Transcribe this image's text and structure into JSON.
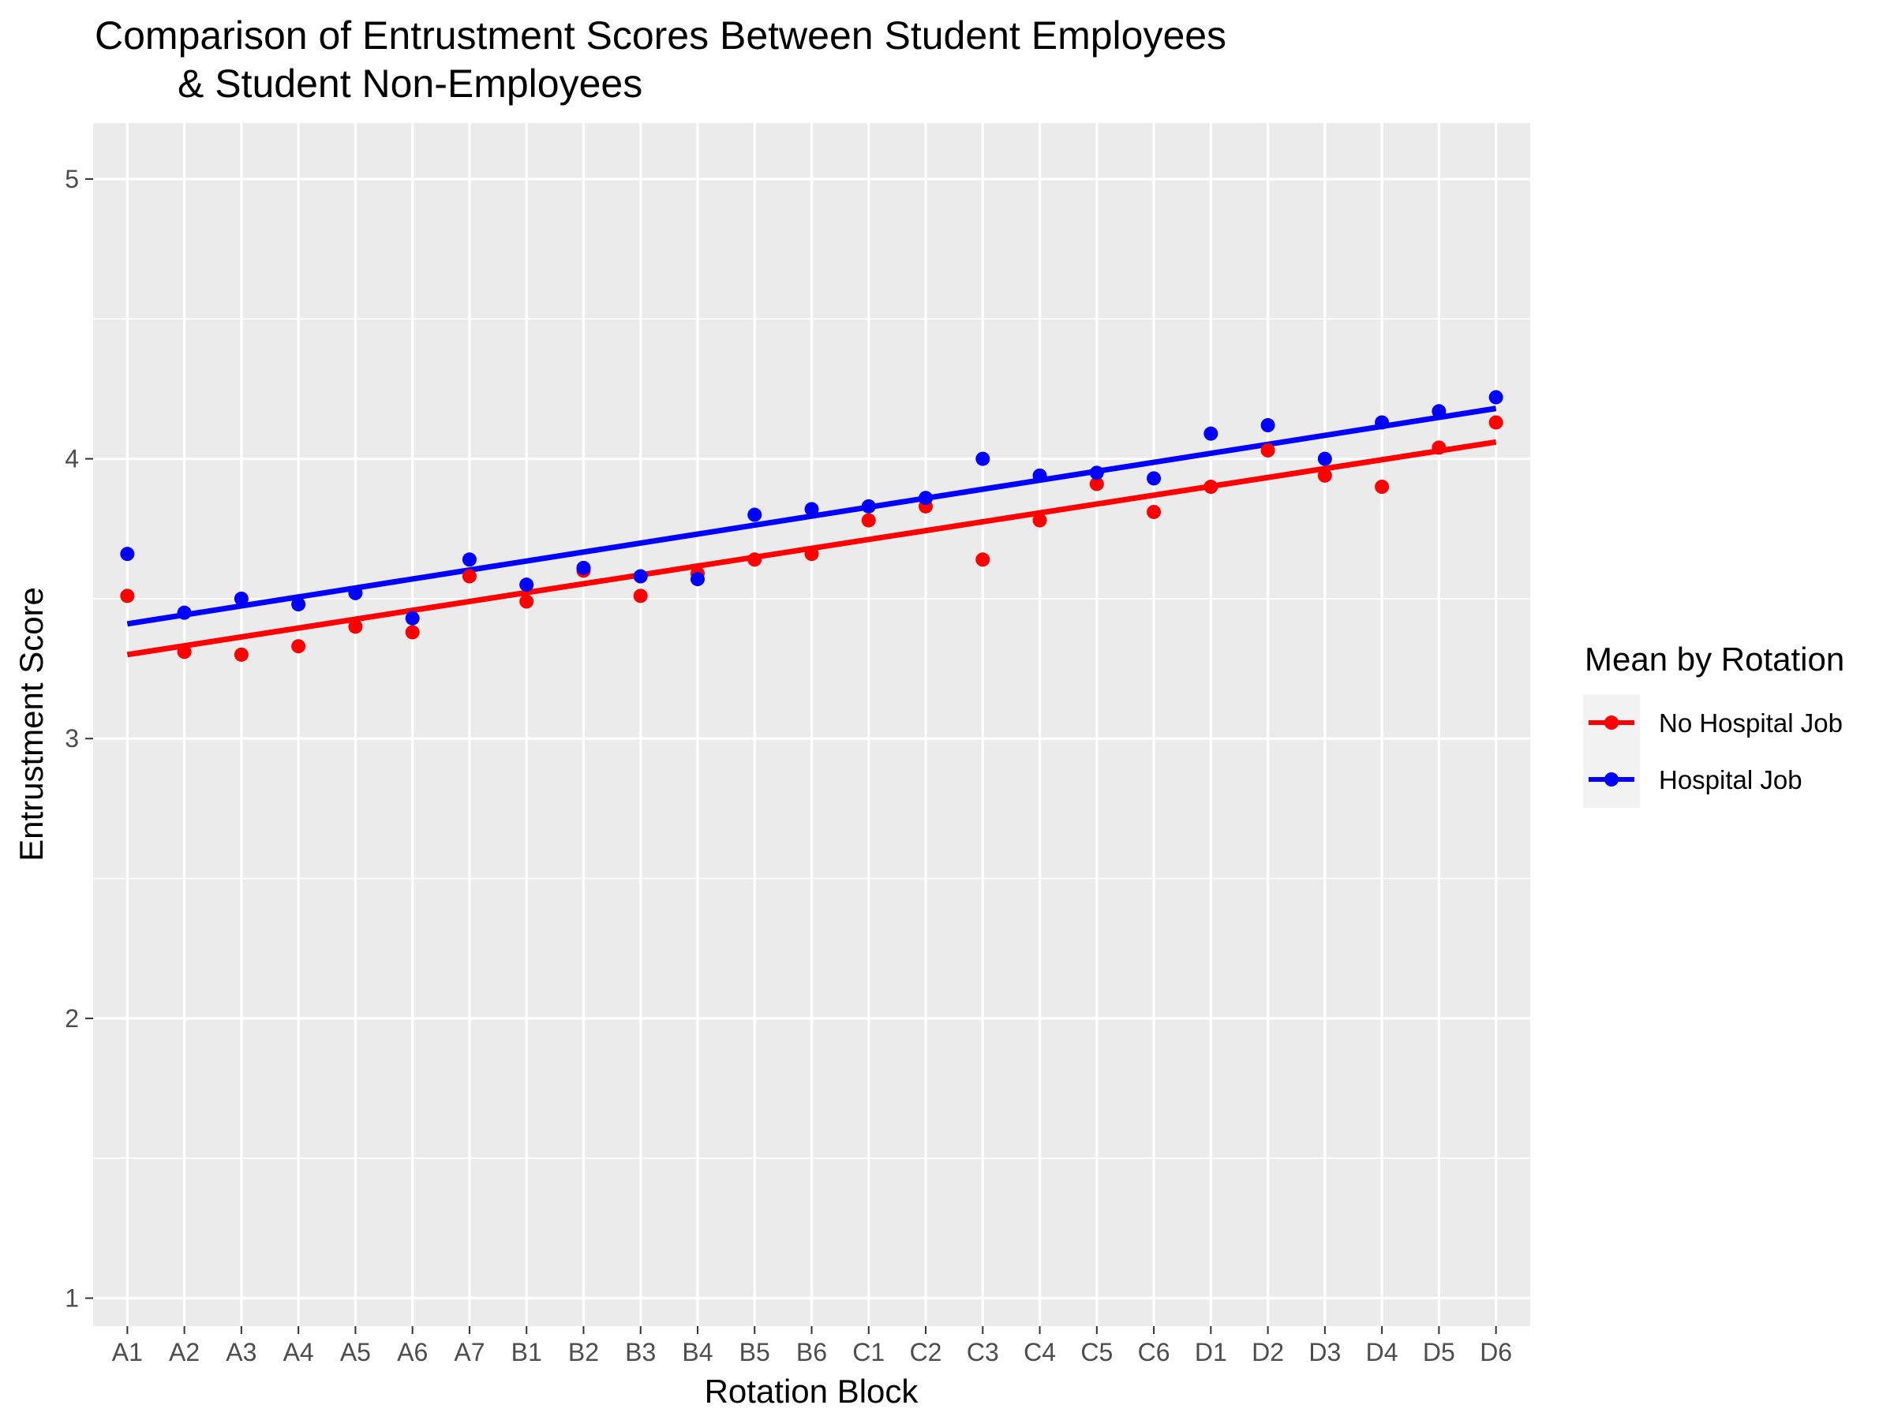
{
  "chart_data": {
    "type": "scatter",
    "title": "Comparison of Entrustment Scores Between Student Employees",
    "title_line2": "& Student Non-Employees",
    "xlabel": "Rotation Block",
    "ylabel": "Entrustment Score",
    "ylim": [
      0.9,
      5.2
    ],
    "yticks": [
      1,
      2,
      3,
      4,
      5
    ],
    "grid": true,
    "panel_background": "#ebebeb",
    "legend": {
      "title": "Mean by Rotation",
      "placement": "right",
      "entries": [
        "No Hospital Job",
        "Hospital Job"
      ]
    },
    "categories": [
      "A1",
      "A2",
      "A3",
      "A4",
      "A5",
      "A6",
      "A7",
      "B1",
      "B2",
      "B3",
      "B4",
      "B5",
      "B6",
      "C1",
      "C2",
      "C3",
      "C4",
      "C5",
      "C6",
      "D1",
      "D2",
      "D3",
      "D4",
      "D5",
      "D6"
    ],
    "series": [
      {
        "name": "No Hospital Job",
        "color": "#ff0000",
        "values": [
          3.51,
          3.31,
          3.3,
          3.33,
          3.4,
          3.38,
          3.58,
          3.49,
          3.6,
          3.51,
          3.59,
          3.64,
          3.66,
          3.78,
          3.83,
          3.64,
          3.78,
          3.91,
          3.81,
          3.9,
          4.03,
          3.94,
          3.9,
          4.04,
          4.13
        ],
        "trend": [
          3.3,
          4.06
        ]
      },
      {
        "name": "Hospital Job",
        "color": "#0000ff",
        "values": [
          3.66,
          3.45,
          3.5,
          3.48,
          3.52,
          3.43,
          3.64,
          3.55,
          3.61,
          3.58,
          3.57,
          3.8,
          3.82,
          3.83,
          3.86,
          4.0,
          3.94,
          3.95,
          3.93,
          4.09,
          4.12,
          4.0,
          4.13,
          4.17,
          4.22
        ],
        "trend": [
          3.41,
          4.18
        ]
      }
    ]
  }
}
